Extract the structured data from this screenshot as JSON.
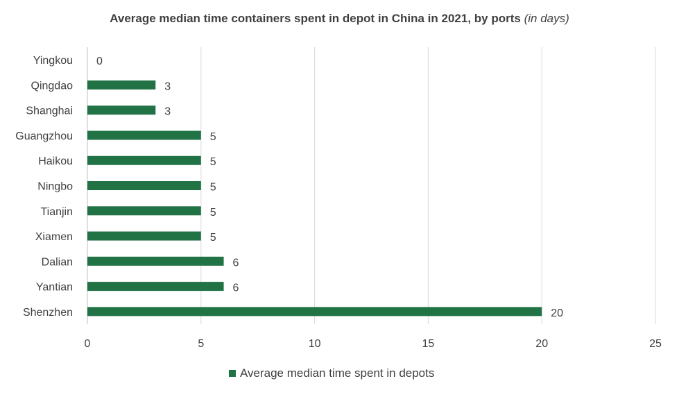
{
  "chart_data": {
    "type": "bar",
    "orientation": "horizontal",
    "title": "Average median time containers spent in depot in China in 2021, by ports",
    "title_unit": "(in days)",
    "categories": [
      "Yingkou",
      "Qingdao",
      "Shanghai",
      "Guangzhou",
      "Haikou",
      "Ningbo",
      "Tianjin",
      "Xiamen",
      "Dalian",
      "Yantian",
      "Shenzhen"
    ],
    "series": [
      {
        "name": "Average median time spent in depots",
        "values": [
          0,
          3,
          3,
          5,
          5,
          5,
          5,
          5,
          6,
          6,
          20
        ],
        "color": "#217346"
      }
    ],
    "xlim": [
      0,
      25
    ],
    "xticks": [
      0,
      5,
      10,
      15,
      20,
      25
    ],
    "xlabel": "",
    "ylabel": "",
    "grid": true,
    "legend_position": "bottom"
  }
}
